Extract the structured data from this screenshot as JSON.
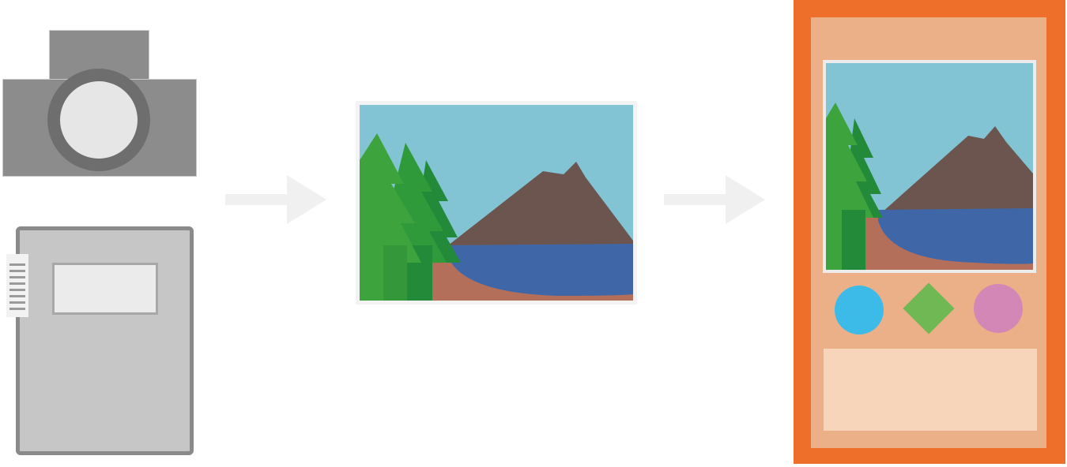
{
  "diagram": {
    "type": "flow",
    "inputs": [
      "camera-icon",
      "notebook-icon"
    ],
    "middle": "landscape-picture",
    "output": "card-with-picture",
    "card_symbols": [
      "circle",
      "diamond",
      "circle"
    ]
  },
  "colors": {
    "gray_dark": "#8c8c8c",
    "arrow": "#f0f0f0",
    "sky": "#82c4d4",
    "tree_light": "#3da33d",
    "tree_dark": "#238a3a",
    "mountain": "#6b554e",
    "lake": "#3f67a8",
    "ground": "#b46f5a",
    "card_border": "#ed6f2a",
    "card_fill": "#ebb088",
    "card_textbox": "#f7d5bb",
    "symbol_blue": "#3dbbe8",
    "symbol_green": "#6fb853",
    "symbol_pink": "#d387b6"
  }
}
